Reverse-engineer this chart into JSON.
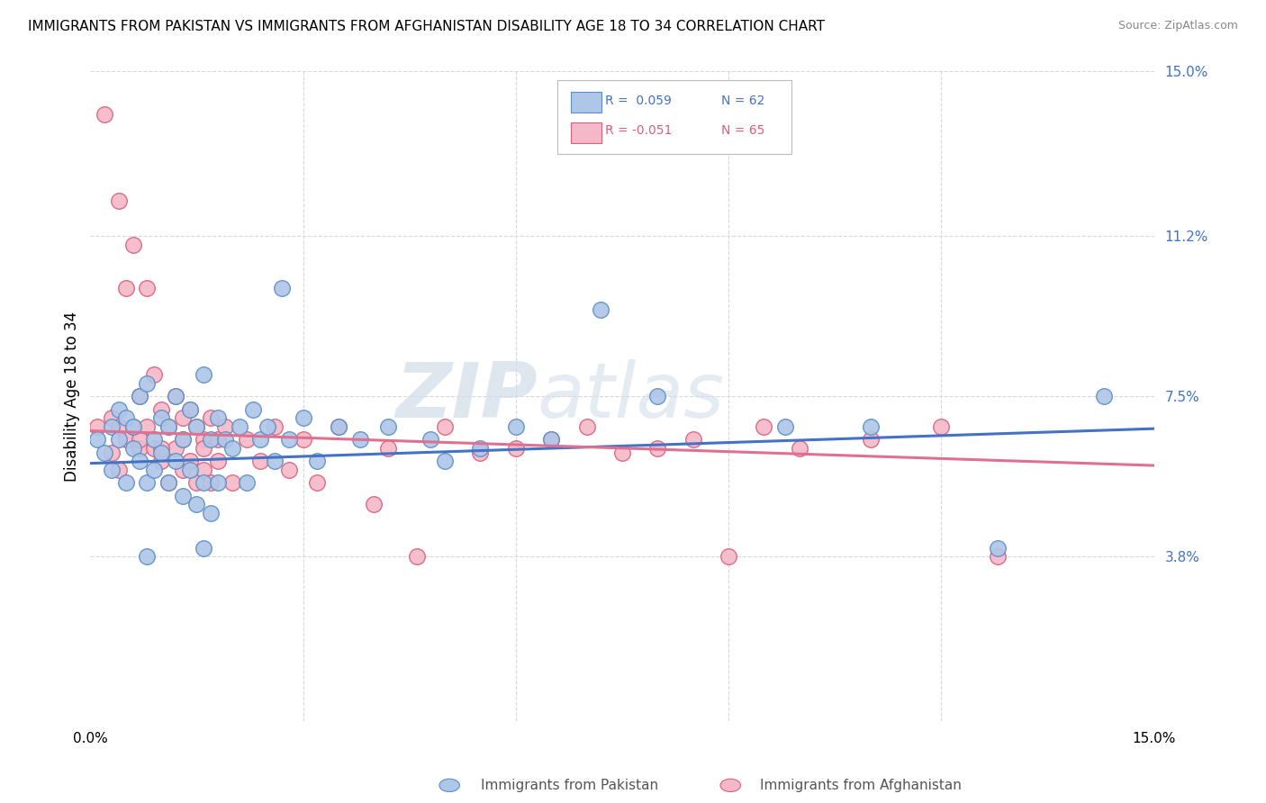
{
  "title": "IMMIGRANTS FROM PAKISTAN VS IMMIGRANTS FROM AFGHANISTAN DISABILITY AGE 18 TO 34 CORRELATION CHART",
  "source": "Source: ZipAtlas.com",
  "ylabel": "Disability Age 18 to 34",
  "xlim": [
    0.0,
    0.15
  ],
  "ylim": [
    0.0,
    0.15
  ],
  "ytick_labels_right": [
    "15.0%",
    "11.2%",
    "7.5%",
    "3.8%"
  ],
  "ytick_positions_right": [
    0.15,
    0.112,
    0.075,
    0.038
  ],
  "watermark_text": "ZIP",
  "watermark_text2": "atlas",
  "pakistan_color": "#aec6e8",
  "pakistan_edge": "#5b8ec4",
  "afghanistan_color": "#f5b8c8",
  "afghanistan_edge": "#d9607a",
  "pakistan_line_color": "#4472c4",
  "afghanistan_line_color": "#e07090",
  "grid_color": "#d8d8d8",
  "background_color": "#ffffff",
  "pak_line_x": [
    0.0,
    0.15
  ],
  "pak_line_y": [
    0.0595,
    0.0675
  ],
  "afg_line_x": [
    0.0,
    0.15
  ],
  "afg_line_y": [
    0.067,
    0.059
  ],
  "pakistan_points": [
    [
      0.001,
      0.065
    ],
    [
      0.002,
      0.062
    ],
    [
      0.003,
      0.068
    ],
    [
      0.003,
      0.058
    ],
    [
      0.004,
      0.072
    ],
    [
      0.004,
      0.065
    ],
    [
      0.005,
      0.07
    ],
    [
      0.005,
      0.055
    ],
    [
      0.006,
      0.068
    ],
    [
      0.006,
      0.063
    ],
    [
      0.007,
      0.075
    ],
    [
      0.007,
      0.06
    ],
    [
      0.008,
      0.078
    ],
    [
      0.008,
      0.055
    ],
    [
      0.009,
      0.065
    ],
    [
      0.009,
      0.058
    ],
    [
      0.01,
      0.07
    ],
    [
      0.01,
      0.062
    ],
    [
      0.011,
      0.068
    ],
    [
      0.011,
      0.055
    ],
    [
      0.012,
      0.075
    ],
    [
      0.012,
      0.06
    ],
    [
      0.013,
      0.065
    ],
    [
      0.013,
      0.052
    ],
    [
      0.014,
      0.072
    ],
    [
      0.014,
      0.058
    ],
    [
      0.015,
      0.068
    ],
    [
      0.015,
      0.05
    ],
    [
      0.016,
      0.08
    ],
    [
      0.016,
      0.055
    ],
    [
      0.017,
      0.065
    ],
    [
      0.017,
      0.048
    ],
    [
      0.018,
      0.07
    ],
    [
      0.018,
      0.055
    ],
    [
      0.019,
      0.065
    ],
    [
      0.02,
      0.063
    ],
    [
      0.021,
      0.068
    ],
    [
      0.022,
      0.055
    ],
    [
      0.023,
      0.072
    ],
    [
      0.024,
      0.065
    ],
    [
      0.025,
      0.068
    ],
    [
      0.026,
      0.06
    ],
    [
      0.027,
      0.1
    ],
    [
      0.028,
      0.065
    ],
    [
      0.03,
      0.07
    ],
    [
      0.032,
      0.06
    ],
    [
      0.035,
      0.068
    ],
    [
      0.038,
      0.065
    ],
    [
      0.042,
      0.068
    ],
    [
      0.048,
      0.065
    ],
    [
      0.05,
      0.06
    ],
    [
      0.055,
      0.063
    ],
    [
      0.06,
      0.068
    ],
    [
      0.065,
      0.065
    ],
    [
      0.072,
      0.095
    ],
    [
      0.08,
      0.075
    ],
    [
      0.098,
      0.068
    ],
    [
      0.11,
      0.068
    ],
    [
      0.128,
      0.04
    ],
    [
      0.143,
      0.075
    ],
    [
      0.008,
      0.038
    ],
    [
      0.016,
      0.04
    ]
  ],
  "afghanistan_points": [
    [
      0.001,
      0.068
    ],
    [
      0.002,
      0.14
    ],
    [
      0.003,
      0.07
    ],
    [
      0.003,
      0.062
    ],
    [
      0.004,
      0.12
    ],
    [
      0.004,
      0.068
    ],
    [
      0.005,
      0.1
    ],
    [
      0.005,
      0.065
    ],
    [
      0.006,
      0.11
    ],
    [
      0.006,
      0.068
    ],
    [
      0.007,
      0.075
    ],
    [
      0.007,
      0.063
    ],
    [
      0.008,
      0.1
    ],
    [
      0.008,
      0.068
    ],
    [
      0.009,
      0.08
    ],
    [
      0.009,
      0.063
    ],
    [
      0.01,
      0.072
    ],
    [
      0.01,
      0.06
    ],
    [
      0.011,
      0.068
    ],
    [
      0.011,
      0.055
    ],
    [
      0.012,
      0.075
    ],
    [
      0.012,
      0.063
    ],
    [
      0.013,
      0.065
    ],
    [
      0.013,
      0.058
    ],
    [
      0.014,
      0.072
    ],
    [
      0.014,
      0.06
    ],
    [
      0.015,
      0.068
    ],
    [
      0.015,
      0.055
    ],
    [
      0.016,
      0.065
    ],
    [
      0.016,
      0.058
    ],
    [
      0.017,
      0.07
    ],
    [
      0.017,
      0.055
    ],
    [
      0.018,
      0.065
    ],
    [
      0.018,
      0.06
    ],
    [
      0.019,
      0.068
    ],
    [
      0.02,
      0.055
    ],
    [
      0.022,
      0.065
    ],
    [
      0.024,
      0.06
    ],
    [
      0.026,
      0.068
    ],
    [
      0.028,
      0.058
    ],
    [
      0.03,
      0.065
    ],
    [
      0.032,
      0.055
    ],
    [
      0.035,
      0.068
    ],
    [
      0.04,
      0.05
    ],
    [
      0.042,
      0.063
    ],
    [
      0.046,
      0.038
    ],
    [
      0.05,
      0.068
    ],
    [
      0.055,
      0.062
    ],
    [
      0.06,
      0.063
    ],
    [
      0.065,
      0.065
    ],
    [
      0.07,
      0.068
    ],
    [
      0.075,
      0.062
    ],
    [
      0.08,
      0.063
    ],
    [
      0.085,
      0.065
    ],
    [
      0.09,
      0.038
    ],
    [
      0.095,
      0.068
    ],
    [
      0.1,
      0.063
    ],
    [
      0.11,
      0.065
    ],
    [
      0.12,
      0.068
    ],
    [
      0.128,
      0.038
    ],
    [
      0.004,
      0.058
    ],
    [
      0.007,
      0.065
    ],
    [
      0.01,
      0.063
    ],
    [
      0.013,
      0.07
    ],
    [
      0.016,
      0.063
    ]
  ]
}
